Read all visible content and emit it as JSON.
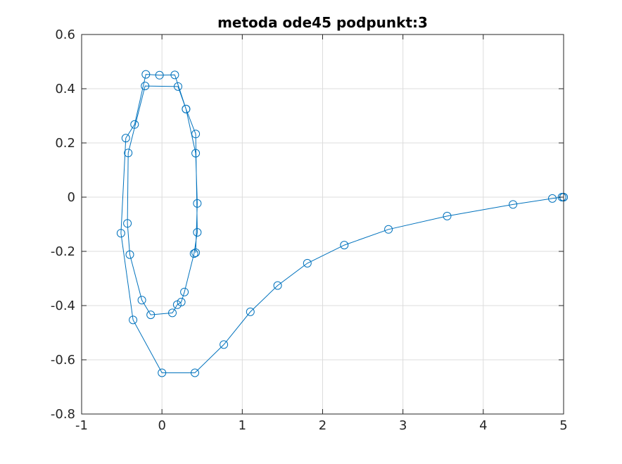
{
  "chart_data": {
    "type": "line",
    "title": "metoda ode45 podpunkt:3",
    "xlabel": "",
    "ylabel": "",
    "xlim": [
      -1,
      5
    ],
    "ylim": [
      -0.8,
      0.6
    ],
    "x_ticks": [
      "-1",
      "0",
      "1",
      "2",
      "3",
      "4",
      "5"
    ],
    "y_ticks": [
      "-0.8",
      "-0.6",
      "-0.4",
      "-0.2",
      "0",
      "0.2",
      "0.4",
      "0.6"
    ],
    "x_tick_values": [
      -1,
      0,
      1,
      2,
      3,
      4,
      5
    ],
    "y_tick_values": [
      -0.8,
      -0.6,
      -0.4,
      -0.2,
      0,
      0.2,
      0.4,
      0.6
    ],
    "grid": true,
    "marker": "circle",
    "line_color": "#0072bd",
    "series": [
      {
        "x": [
          5.0,
          5.0,
          4.98,
          4.86,
          4.37,
          3.55,
          2.82,
          2.27,
          1.81,
          1.44,
          1.1,
          0.77,
          0.41,
          0.0,
          -0.36,
          -0.51,
          -0.45,
          -0.34,
          -0.2,
          -0.03,
          0.16,
          0.3,
          0.42,
          0.44,
          0.4,
          0.28,
          0.24,
          0.19,
          0.13,
          -0.14,
          -0.25,
          -0.4,
          -0.43,
          -0.42,
          -0.21,
          0.2,
          0.3,
          0.42,
          0.44,
          0.42
        ],
        "y": [
          0.0,
          0.0,
          0.0,
          -0.005,
          -0.027,
          -0.07,
          -0.119,
          -0.177,
          -0.244,
          -0.326,
          -0.423,
          -0.544,
          -0.648,
          -0.648,
          -0.453,
          -0.133,
          0.218,
          0.268,
          0.453,
          0.45,
          0.451,
          0.325,
          0.233,
          -0.13,
          -0.208,
          -0.35,
          -0.387,
          -0.397,
          -0.427,
          -0.434,
          -0.38,
          -0.212,
          -0.097,
          0.163,
          0.41,
          0.408,
          0.325,
          0.162,
          -0.023,
          -0.205
        ]
      }
    ]
  }
}
